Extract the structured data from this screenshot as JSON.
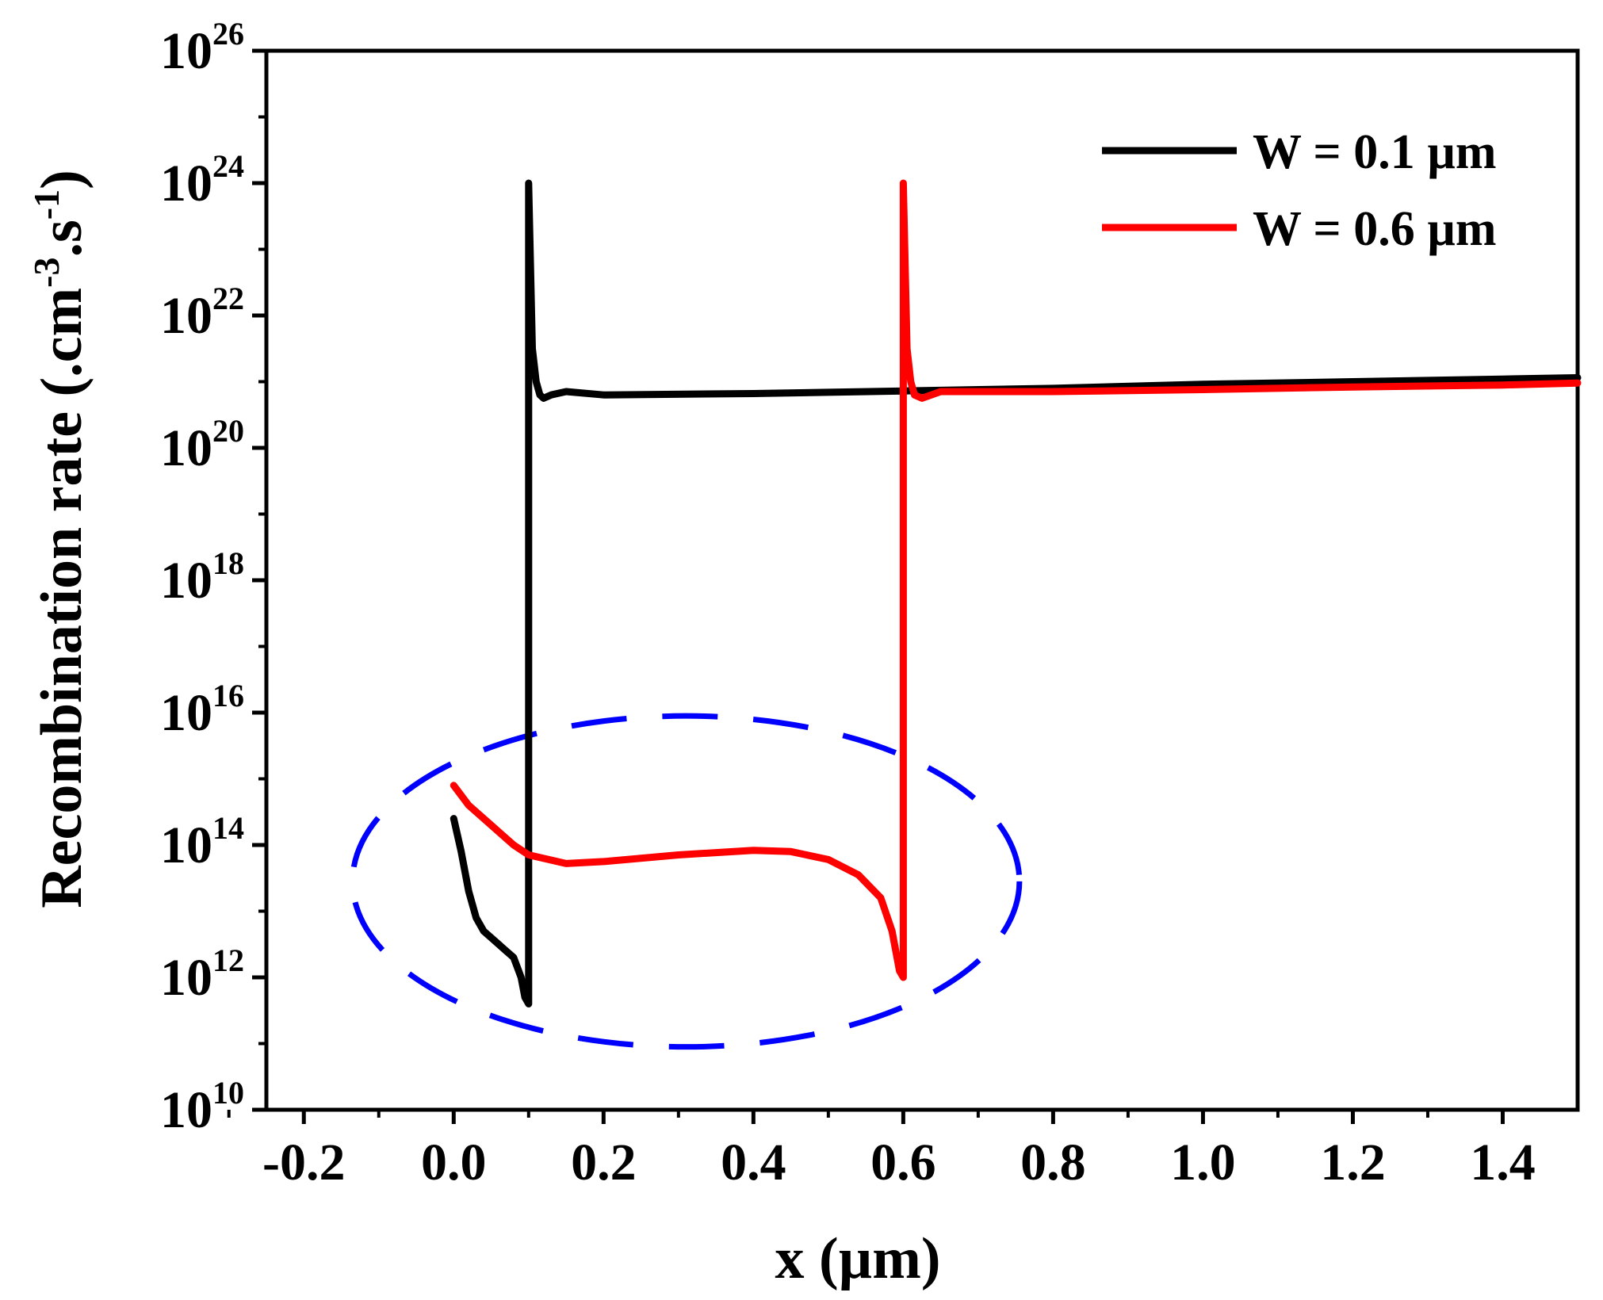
{
  "chart_data": {
    "type": "line",
    "title": "",
    "xlabel": "x (µm)",
    "ylabel_text": "Recombination rate (.cm",
    "ylabel_sup1": "-3",
    "ylabel_mid": ".s",
    "ylabel_sup2": "-1",
    "ylabel_end": ")",
    "xlim": [
      -0.25,
      1.5
    ],
    "ylim_log10": [
      10,
      26
    ],
    "yscale": "log",
    "x_ticks": [
      -0.2,
      0.0,
      0.2,
      0.4,
      0.6,
      0.8,
      1.0,
      1.2,
      1.4
    ],
    "x_tick_labels": [
      "-0.2",
      "0.0",
      "0.2",
      "0.4",
      "0.6",
      "0.8",
      "1.0",
      "1.2",
      "1.4"
    ],
    "y_tick_exponents": [
      10,
      12,
      14,
      16,
      18,
      20,
      22,
      24,
      26
    ],
    "y_tick_base": "10",
    "y_tick_exp_labels": [
      "10",
      "12",
      "14",
      "16",
      "18",
      "20",
      "22",
      "24",
      "26"
    ],
    "legend_position": "top-right",
    "series": [
      {
        "name": "W = 0.1 µm",
        "color": "#000000",
        "points_log10": [
          [
            0.0,
            14.4
          ],
          [
            0.01,
            13.9
          ],
          [
            0.02,
            13.3
          ],
          [
            0.03,
            12.9
          ],
          [
            0.04,
            12.7
          ],
          [
            0.05,
            12.6
          ],
          [
            0.06,
            12.5
          ],
          [
            0.07,
            12.4
          ],
          [
            0.08,
            12.3
          ],
          [
            0.09,
            12.0
          ],
          [
            0.095,
            11.7
          ],
          [
            0.1,
            11.6
          ],
          [
            0.1,
            24.0
          ],
          [
            0.105,
            21.5
          ],
          [
            0.11,
            21.0
          ],
          [
            0.115,
            20.8
          ],
          [
            0.12,
            20.75
          ],
          [
            0.13,
            20.8
          ],
          [
            0.15,
            20.85
          ],
          [
            0.2,
            20.8
          ],
          [
            0.4,
            20.82
          ],
          [
            0.6,
            20.86
          ],
          [
            0.8,
            20.9
          ],
          [
            1.0,
            20.96
          ],
          [
            1.2,
            21.0
          ],
          [
            1.4,
            21.04
          ],
          [
            1.5,
            21.06
          ]
        ]
      },
      {
        "name": "W = 0.6 µm",
        "color": "#ff0000",
        "points_log10": [
          [
            0.0,
            14.9
          ],
          [
            0.02,
            14.6
          ],
          [
            0.05,
            14.3
          ],
          [
            0.08,
            14.0
          ],
          [
            0.1,
            13.85
          ],
          [
            0.15,
            13.72
          ],
          [
            0.2,
            13.75
          ],
          [
            0.3,
            13.85
          ],
          [
            0.4,
            13.92
          ],
          [
            0.45,
            13.9
          ],
          [
            0.5,
            13.78
          ],
          [
            0.54,
            13.55
          ],
          [
            0.57,
            13.2
          ],
          [
            0.585,
            12.7
          ],
          [
            0.595,
            12.1
          ],
          [
            0.6,
            12.0
          ],
          [
            0.6,
            24.0
          ],
          [
            0.605,
            21.5
          ],
          [
            0.61,
            21.0
          ],
          [
            0.615,
            20.8
          ],
          [
            0.625,
            20.75
          ],
          [
            0.65,
            20.85
          ],
          [
            0.8,
            20.85
          ],
          [
            1.0,
            20.88
          ],
          [
            1.2,
            20.92
          ],
          [
            1.4,
            20.95
          ],
          [
            1.5,
            20.98
          ]
        ]
      }
    ],
    "annotations": [
      {
        "type": "dashed-ellipse",
        "color": "#0000ff",
        "center_x": 0.31,
        "center_log10": 13.45,
        "half_width_x": 0.445,
        "half_height_decades": 2.5
      }
    ]
  }
}
